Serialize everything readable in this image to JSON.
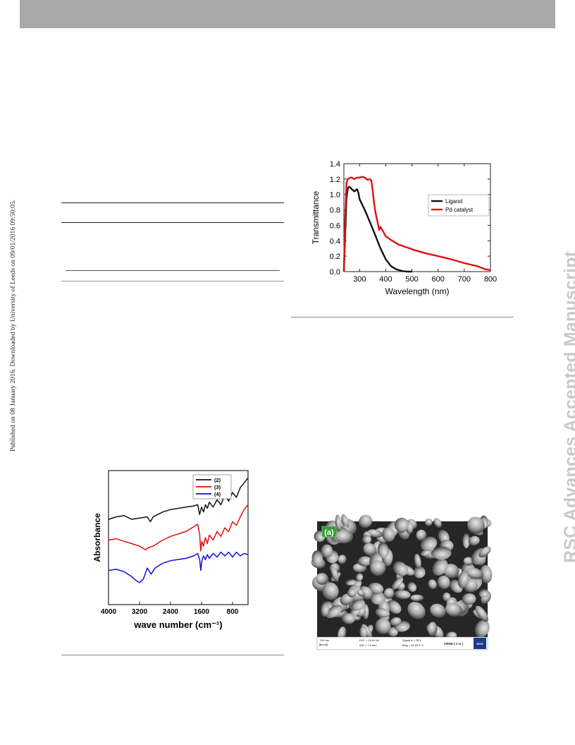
{
  "page": {
    "side_left": "Published on 08 January 2016. Downloaded by University of Leeds on 09/01/2016 09:50:05.",
    "side_right": "RSC Advances Accepted Manuscript"
  },
  "colors": {
    "header_bar": "#a9a9a9",
    "black_series": "#111111",
    "red_series": "#e01010",
    "blue_series": "#1010e0",
    "watermark": "#c9c9c9"
  },
  "chart_data": [
    {
      "type": "line",
      "title": "",
      "xlabel": "Wavelength (nm)",
      "ylabel": "Transmittance",
      "xlim": [
        240,
        800
      ],
      "ylim": [
        0,
        1.4
      ],
      "xticks": [
        300,
        400,
        500,
        600,
        700,
        800
      ],
      "yticks": [
        0.0,
        0.2,
        0.4,
        0.6,
        0.8,
        1.0,
        1.2,
        1.4
      ],
      "grid": false,
      "legend_position": "top-right",
      "series": [
        {
          "name": "Ligand",
          "color": "#111111",
          "x": [
            240,
            245,
            250,
            255,
            260,
            265,
            270,
            280,
            290,
            295,
            300,
            320,
            340,
            360,
            380,
            400,
            420,
            440,
            460,
            480,
            500
          ],
          "y": [
            0.0,
            0.5,
            0.95,
            1.08,
            1.1,
            1.09,
            1.07,
            1.04,
            1.07,
            1.03,
            0.94,
            0.8,
            0.64,
            0.47,
            0.3,
            0.16,
            0.07,
            0.03,
            0.01,
            0.0,
            0.0
          ]
        },
        {
          "name": "Pd catalyst",
          "color": "#e01010",
          "x": [
            240,
            245,
            250,
            255,
            260,
            265,
            270,
            280,
            290,
            300,
            310,
            320,
            330,
            340,
            345,
            350,
            355,
            360,
            365,
            370,
            375,
            380,
            390,
            400,
            420,
            450,
            500,
            550,
            600,
            650,
            700,
            750,
            780,
            800
          ],
          "y": [
            0.0,
            0.7,
            1.15,
            1.2,
            1.21,
            1.22,
            1.22,
            1.2,
            1.22,
            1.22,
            1.23,
            1.22,
            1.19,
            1.2,
            1.18,
            1.05,
            0.9,
            0.78,
            0.7,
            0.62,
            0.54,
            0.58,
            0.52,
            0.46,
            0.41,
            0.35,
            0.29,
            0.24,
            0.2,
            0.16,
            0.11,
            0.07,
            0.03,
            0.02
          ]
        }
      ]
    },
    {
      "type": "line",
      "title": "",
      "xlabel": "wave number (cm⁻¹)",
      "ylabel": "Absorbance",
      "xlim": [
        4000,
        400
      ],
      "xticks": [
        4000,
        3200,
        2400,
        1600,
        800
      ],
      "yticks": [],
      "grid": false,
      "legend_position": "top-right",
      "series": [
        {
          "name": "(2)",
          "color": "#111111",
          "x": [
            4000,
            3800,
            3600,
            3400,
            3200,
            3000,
            2920,
            2850,
            2600,
            2400,
            2000,
            1800,
            1700,
            1650,
            1600,
            1550,
            1500,
            1450,
            1400,
            1300,
            1200,
            1100,
            1000,
            900,
            800,
            700,
            600,
            500,
            400
          ],
          "y": [
            0.7,
            0.72,
            0.73,
            0.7,
            0.71,
            0.72,
            0.68,
            0.72,
            0.76,
            0.78,
            0.8,
            0.81,
            0.82,
            0.74,
            0.8,
            0.76,
            0.82,
            0.79,
            0.84,
            0.8,
            0.86,
            0.82,
            0.9,
            0.85,
            0.92,
            0.88,
            0.96,
            1.0,
            1.04
          ]
        },
        {
          "name": "(3)",
          "color": "#e01010",
          "x": [
            4000,
            3800,
            3600,
            3400,
            3200,
            3050,
            2950,
            2850,
            2600,
            2400,
            2000,
            1800,
            1700,
            1650,
            1620,
            1590,
            1550,
            1500,
            1450,
            1400,
            1300,
            1200,
            1100,
            1000,
            900,
            800,
            700,
            600,
            500,
            400
          ],
          "y": [
            0.53,
            0.54,
            0.52,
            0.5,
            0.48,
            0.45,
            0.47,
            0.48,
            0.53,
            0.56,
            0.6,
            0.64,
            0.66,
            0.58,
            0.44,
            0.52,
            0.48,
            0.55,
            0.5,
            0.57,
            0.53,
            0.6,
            0.56,
            0.63,
            0.6,
            0.68,
            0.65,
            0.72,
            0.78,
            0.82
          ]
        },
        {
          "name": "(4)",
          "color": "#1010e0",
          "x": [
            4000,
            3800,
            3600,
            3400,
            3300,
            3200,
            3100,
            3000,
            2900,
            2800,
            2600,
            2400,
            2000,
            1800,
            1700,
            1650,
            1620,
            1590,
            1550,
            1500,
            1450,
            1400,
            1300,
            1200,
            1100,
            1000,
            900,
            800,
            700,
            600,
            500,
            400
          ],
          "y": [
            0.28,
            0.29,
            0.27,
            0.23,
            0.2,
            0.18,
            0.21,
            0.3,
            0.25,
            0.3,
            0.34,
            0.36,
            0.38,
            0.4,
            0.42,
            0.37,
            0.28,
            0.36,
            0.4,
            0.37,
            0.41,
            0.38,
            0.42,
            0.39,
            0.43,
            0.4,
            0.43,
            0.39,
            0.43,
            0.4,
            0.42,
            0.41
          ]
        }
      ]
    }
  ],
  "sem": {
    "panel_label": "(a)",
    "scale_bar": "200 nm",
    "eht": "EHT = 15.00 kV",
    "wd": "WD = 7.0 mm",
    "signal": "Signal A = SE1",
    "mag": "Mag = 50.00 K X",
    "facility": "CRNN ( C U )",
    "logo": "ZEISS"
  }
}
